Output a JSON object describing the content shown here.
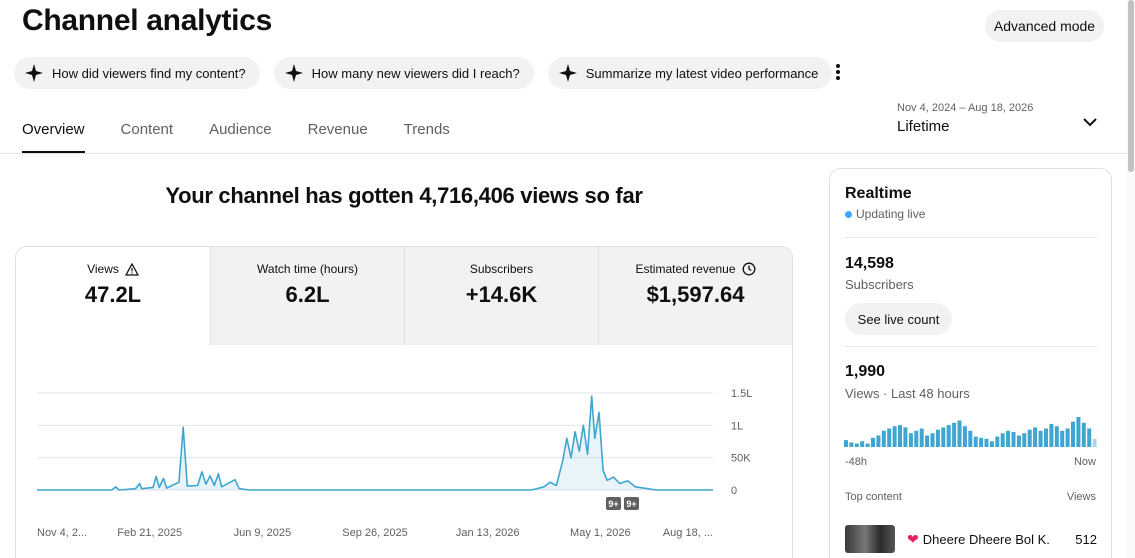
{
  "page": {
    "title": "Channel analytics",
    "advanced_mode": "Advanced mode"
  },
  "chips": [
    {
      "label": "How did viewers find my content?"
    },
    {
      "label": "How many new viewers did I reach?"
    },
    {
      "label": "Summarize my latest video performance"
    }
  ],
  "tabs": [
    "Overview",
    "Content",
    "Audience",
    "Revenue",
    "Trends"
  ],
  "date_selector": {
    "range": "Nov 4, 2024 – Aug 18, 2026",
    "label": "Lifetime"
  },
  "headline": "Your channel has gotten 4,716,406 views so far",
  "metrics": [
    {
      "label": "Views",
      "value": "47.2L"
    },
    {
      "label": "Watch time (hours)",
      "value": "6.2L"
    },
    {
      "label": "Subscribers",
      "value": "+14.6K"
    },
    {
      "label": "Estimated revenue",
      "value": "$1,597.64"
    }
  ],
  "chart_data": {
    "type": "area",
    "y_ticks": [
      "1.5L",
      "1L",
      "50K",
      "0"
    ],
    "y_range": [
      0,
      150000
    ],
    "x_tick_labels": [
      "Nov 4, 2...",
      "Feb 21, 2025",
      "Jun 9, 2025",
      "Sep 26, 2025",
      "Jan 13, 2026",
      "May 1, 2026",
      "Aug 18, ..."
    ],
    "x_range": [
      "2024-11-04",
      "2026-08-18"
    ],
    "series": [
      {
        "color": "#3ea6d0",
        "points": [
          [
            "2024-11-04",
            0
          ],
          [
            "2025-01-15",
            0
          ],
          [
            "2025-01-19",
            5000
          ],
          [
            "2025-01-22",
            0
          ],
          [
            "2025-02-07",
            2000
          ],
          [
            "2025-02-11",
            10000
          ],
          [
            "2025-02-13",
            2000
          ],
          [
            "2025-02-24",
            4000
          ],
          [
            "2025-02-27",
            21000
          ],
          [
            "2025-03-02",
            4000
          ],
          [
            "2025-03-06",
            18000
          ],
          [
            "2025-03-09",
            3000
          ],
          [
            "2025-03-21",
            12000
          ],
          [
            "2025-03-25",
            97000
          ],
          [
            "2025-03-29",
            6000
          ],
          [
            "2025-04-08",
            7000
          ],
          [
            "2025-04-12",
            28000
          ],
          [
            "2025-04-16",
            9000
          ],
          [
            "2025-04-20",
            22000
          ],
          [
            "2025-04-24",
            7000
          ],
          [
            "2025-04-28",
            25000
          ],
          [
            "2025-05-01",
            5000
          ],
          [
            "2025-05-14",
            16000
          ],
          [
            "2025-05-18",
            2000
          ],
          [
            "2025-05-28",
            0
          ],
          [
            "2026-02-24",
            0
          ],
          [
            "2026-03-08",
            5000
          ],
          [
            "2026-03-14",
            12000
          ],
          [
            "2026-03-20",
            7000
          ],
          [
            "2026-03-26",
            45000
          ],
          [
            "2026-03-30",
            80000
          ],
          [
            "2026-04-03",
            50000
          ],
          [
            "2026-04-07",
            90000
          ],
          [
            "2026-04-11",
            60000
          ],
          [
            "2026-04-15",
            100000
          ],
          [
            "2026-04-19",
            55000
          ],
          [
            "2026-04-23",
            145000
          ],
          [
            "2026-04-26",
            80000
          ],
          [
            "2026-04-30",
            120000
          ],
          [
            "2026-05-04",
            30000
          ],
          [
            "2026-05-08",
            15000
          ],
          [
            "2026-05-14",
            20000
          ],
          [
            "2026-05-20",
            10000
          ],
          [
            "2026-05-28",
            14000
          ],
          [
            "2026-06-04",
            5000
          ],
          [
            "2026-06-12",
            3000
          ],
          [
            "2026-06-24",
            0
          ],
          [
            "2026-08-18",
            0
          ]
        ]
      }
    ],
    "annotations": [
      "9+",
      "9+"
    ]
  },
  "realtime": {
    "title": "Realtime",
    "live_text": "Updating live",
    "subscribers_value": "14,598",
    "subscribers_label": "Subscribers",
    "see_live_count": "See live count",
    "views_value": "1,990",
    "views_label": "Views · Last 48 hours",
    "bars": [
      6,
      4,
      3,
      5,
      3,
      8,
      10,
      14,
      16,
      18,
      19,
      17,
      12,
      14,
      16,
      10,
      12,
      15,
      17,
      19,
      21,
      23,
      18,
      14,
      9,
      8,
      7,
      5,
      9,
      12,
      14,
      13,
      10,
      12,
      15,
      17,
      14,
      16,
      20,
      18,
      14,
      16,
      22,
      26,
      21,
      16,
      7
    ],
    "axis_left": "-48h",
    "axis_right": "Now",
    "top_content_label": "Top content",
    "views_col": "Views",
    "top_item": {
      "title": "Dheere Dheere Bol K...",
      "views": "512"
    }
  },
  "colors": {
    "accent": "#3ea6d0",
    "live_dot": "#3ea6ff"
  }
}
